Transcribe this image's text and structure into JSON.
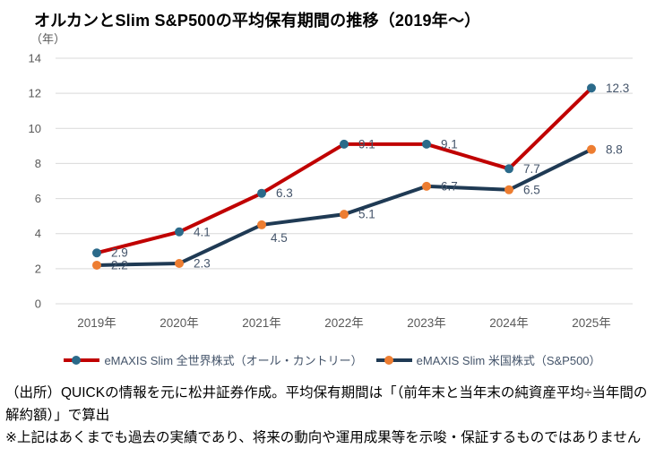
{
  "title": "オルカンとSlim S&P500の平均保有期間の推移（2019年～）",
  "unit_label": "（年）",
  "chart_data": {
    "type": "line",
    "categories": [
      "2019年",
      "2020年",
      "2021年",
      "2022年",
      "2023年",
      "2024年",
      "2025年"
    ],
    "series": [
      {
        "name": "eMAXIS Slim 全世界株式（オール・カントリー）",
        "values": [
          2.9,
          4.1,
          6.3,
          9.1,
          9.1,
          7.7,
          12.3
        ],
        "line_color": "#C00000",
        "marker_color": "#2B6A8A",
        "label_below": []
      },
      {
        "name": "eMAXIS Slim 米国株式（S&P500）",
        "values": [
          2.2,
          2.3,
          4.5,
          5.1,
          6.7,
          6.5,
          8.8
        ],
        "line_color": "#1F3A54",
        "marker_color": "#ED7D31",
        "label_below": [
          2
        ]
      }
    ],
    "ylim": [
      0,
      14
    ],
    "y_ticks": [
      0,
      2,
      4,
      6,
      8,
      10,
      12,
      14
    ],
    "grid": "horizontal",
    "gridline_color": "#D9D9D9",
    "tick_label_color": "#595959",
    "data_label_color": "#44546A",
    "legend_position": "bottom",
    "data_labels": true
  },
  "footnotes": [
    "（出所）QUICKの情報を元に松井証券作成。平均保有期間は「（前年末と当年末の純資産平均÷当年間の解約額）」で算出",
    "※上記はあくまでも過去の実績であり、将来の動向や運用成果等を示唆・保証するものではありません"
  ]
}
